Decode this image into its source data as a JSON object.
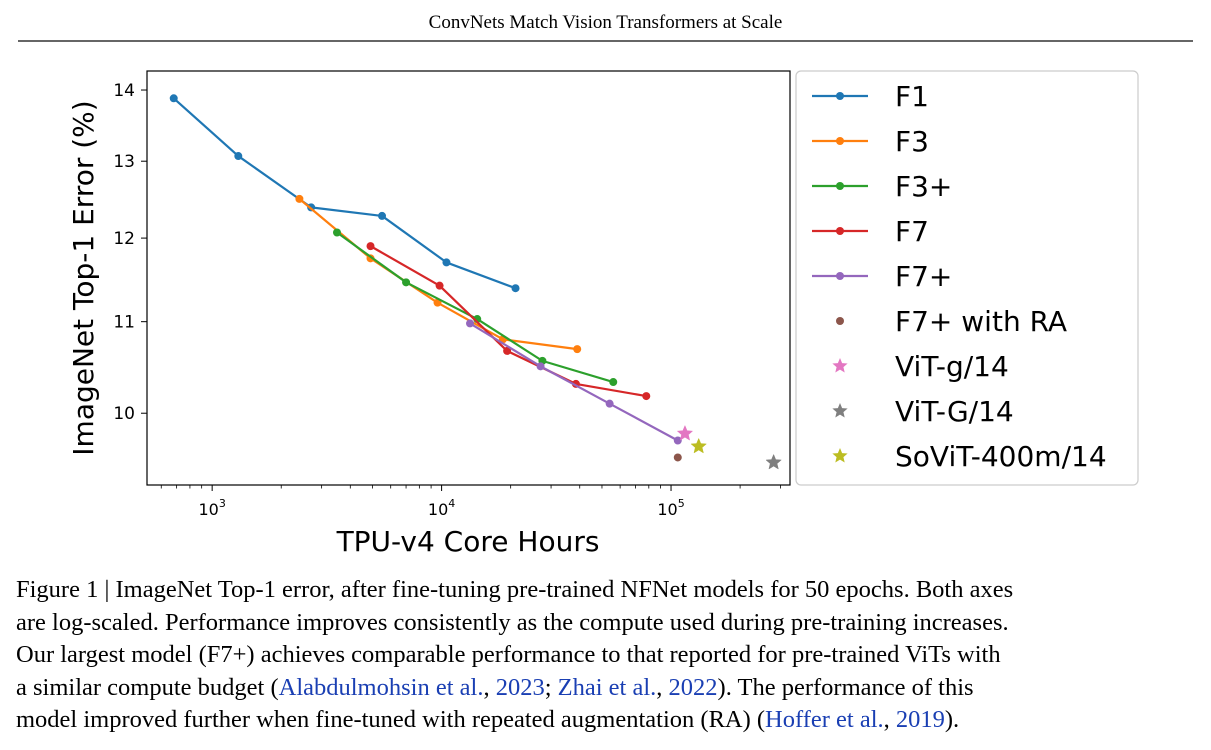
{
  "header": "ConvNets Match Vision Transformers at Scale",
  "chart_data": {
    "type": "line",
    "xlabel": "TPU-v4 Core Hours",
    "ylabel": "ImageNet Top-1 Error (%)",
    "xscale": "log",
    "yscale": "log",
    "xlim": [
      520,
      330000
    ],
    "ylim": [
      9.28,
      14.28
    ],
    "xticks": [
      {
        "value": 1000,
        "base": "10",
        "exp": "3"
      },
      {
        "value": 10000,
        "base": "10",
        "exp": "4"
      },
      {
        "value": 100000,
        "base": "10",
        "exp": "5"
      }
    ],
    "yticks": [
      {
        "value": 10,
        "label": "10"
      },
      {
        "value": 11,
        "label": "11"
      },
      {
        "value": 12,
        "label": "12"
      },
      {
        "value": 13,
        "label": "13"
      },
      {
        "value": 14,
        "label": "14"
      }
    ],
    "legend_position": "outside-right",
    "series": [
      {
        "name": "F1",
        "color": "#1f77b4",
        "marker": "circle",
        "line": true,
        "x": [
          680,
          1300,
          2700,
          5500,
          10500,
          21000
        ],
        "y": [
          13.88,
          13.07,
          12.39,
          12.28,
          11.7,
          11.39
        ]
      },
      {
        "name": "F3",
        "color": "#ff7f0e",
        "marker": "circle",
        "line": true,
        "x": [
          2400,
          4900,
          9600,
          18500,
          39000
        ],
        "y": [
          12.5,
          11.75,
          11.22,
          10.8,
          10.69
        ]
      },
      {
        "name": "F3+",
        "color": "#2ca02c",
        "marker": "circle",
        "line": true,
        "x": [
          3500,
          7000,
          14300,
          27500,
          56000
        ],
        "y": [
          12.07,
          11.46,
          11.03,
          10.56,
          10.33
        ]
      },
      {
        "name": "F7",
        "color": "#d62728",
        "marker": "circle",
        "line": true,
        "x": [
          4900,
          9800,
          19300,
          38500,
          78000
        ],
        "y": [
          11.9,
          11.42,
          10.67,
          10.31,
          10.18
        ]
      },
      {
        "name": "F7+",
        "color": "#9467bd",
        "marker": "circle",
        "line": true,
        "x": [
          13300,
          27000,
          54000,
          107000
        ],
        "y": [
          10.98,
          10.5,
          10.1,
          9.72
        ]
      },
      {
        "name": "F7+ with RA",
        "color": "#8c564b",
        "marker": "circle",
        "line": false,
        "x": [
          107000
        ],
        "y": [
          9.55
        ]
      },
      {
        "name": "ViT-g/14",
        "color": "#e377c2",
        "marker": "star",
        "line": false,
        "x": [
          115000
        ],
        "y": [
          9.79
        ]
      },
      {
        "name": "ViT-G/14",
        "color": "#7f7f7f",
        "marker": "star",
        "line": false,
        "x": [
          280000
        ],
        "y": [
          9.5
        ]
      },
      {
        "name": "SoViT-400m/14",
        "color": "#bcbd22",
        "marker": "star",
        "line": false,
        "x": [
          132000
        ],
        "y": [
          9.66
        ]
      }
    ]
  },
  "caption": {
    "line1": "Figure 1 | ImageNet Top-1 error, after fine-tuning pre-trained NFNet models for 50 epochs. Both axes",
    "line2": "are log-scaled. Performance improves consistently as the compute used during pre-training increases.",
    "line3": "Our largest model (F7+) achieves comparable performance to that reported for pre-trained ViTs with",
    "line4_pre": "a similar compute budget (",
    "cite1_name": "Alabdulmohsin et al.",
    "cite1_year": "2023",
    "sep": "; ",
    "cite2_name": "Zhai et al.",
    "cite2_year": "2022",
    "line4_post": "). The performance of this",
    "line5_pre": "model improved further when fine-tuned with repeated augmentation (RA) (",
    "cite3_name": "Hoffer et al.",
    "cite3_year": "2019",
    "line5_post": ")."
  }
}
